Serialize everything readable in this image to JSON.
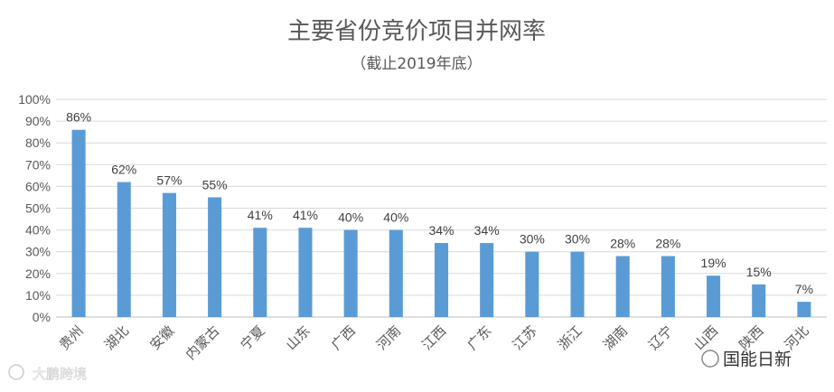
{
  "chart_data": {
    "type": "bar",
    "title": "主要省份竞价项目并网率",
    "subtitle": "（截止2019年底）",
    "categories": [
      "贵州",
      "湖北",
      "安徽",
      "内蒙古",
      "宁夏",
      "山东",
      "广西",
      "河南",
      "江西",
      "广东",
      "江苏",
      "浙江",
      "湖南",
      "辽宁",
      "山西",
      "陕西",
      "河北"
    ],
    "values": [
      86,
      62,
      57,
      55,
      41,
      41,
      40,
      40,
      34,
      34,
      30,
      30,
      28,
      28,
      19,
      15,
      7
    ],
    "value_labels": [
      "86%",
      "62%",
      "57%",
      "55%",
      "41%",
      "41%",
      "40%",
      "40%",
      "34%",
      "34%",
      "30%",
      "30%",
      "28%",
      "28%",
      "19%",
      "15%",
      "7%"
    ],
    "yticks": [
      "0%",
      "10%",
      "20%",
      "30%",
      "40%",
      "50%",
      "60%",
      "70%",
      "80%",
      "90%",
      "100%"
    ],
    "ylim": [
      0,
      100
    ],
    "xlabel": "",
    "ylabel": "",
    "grid": true,
    "bar_color": "#5B9BD5"
  },
  "watermarks": {
    "left": "大鹏跨境",
    "right": "国能日新"
  }
}
